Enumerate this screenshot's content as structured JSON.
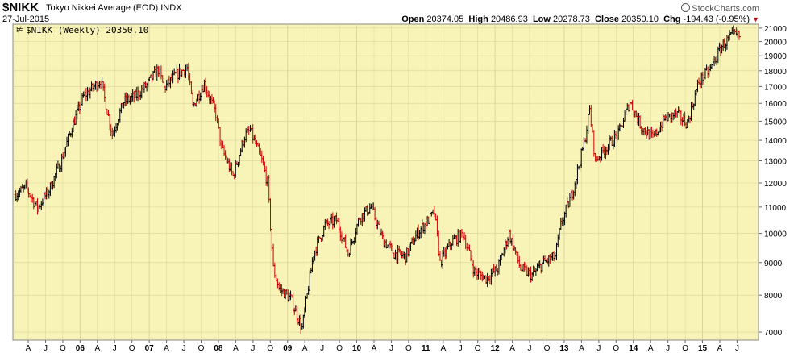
{
  "header": {
    "symbol": "$NIKK",
    "name": "Tokyo Nikkei Average (EOD)",
    "exchange": "INDX",
    "date": "27-Jul-2015",
    "watermark": "StockCharts.com",
    "open_label": "Open",
    "open": "20374.05",
    "high_label": "High",
    "high": "20486.93",
    "low_label": "Low",
    "low": "20278.73",
    "close_label": "Close",
    "close": "20350.10",
    "chg_label": "Chg",
    "chg": "-194.43 (-0.95%)"
  },
  "legend": {
    "label": "$NIKK (Weekly) 20350.10"
  },
  "colors": {
    "plot_bg": "#f8f4b8",
    "up": "#000000",
    "down": "#cc0000",
    "grid": "#d8d29a",
    "legend_icon": "#000000"
  },
  "chart_data": {
    "type": "ohlc",
    "title": "$NIKK (Weekly) 20350.10",
    "scale": "log",
    "ylim": [
      6800,
      21300
    ],
    "y_ticks": [
      7000,
      8000,
      9000,
      10000,
      11000,
      12000,
      13000,
      14000,
      15000,
      16000,
      17000,
      18000,
      19000,
      20000,
      21000
    ],
    "x_ticks": [
      "A",
      "J",
      "O",
      "06",
      "A",
      "J",
      "O",
      "07",
      "A",
      "J",
      "O",
      "08",
      "A",
      "J",
      "O",
      "09",
      "A",
      "J",
      "O",
      "10",
      "A",
      "J",
      "O",
      "11",
      "A",
      "J",
      "O",
      "12",
      "A",
      "J",
      "O",
      "13",
      "A",
      "J",
      "O",
      "14",
      "A",
      "J",
      "O",
      "15",
      "A",
      "J"
    ],
    "year_ticks": [
      "06",
      "07",
      "08",
      "09",
      "10",
      "11",
      "12",
      "13",
      "14",
      "15"
    ],
    "x_start": "2005-01",
    "x_end": "2015-07",
    "anchors": [
      [
        "2005-01",
        11500
      ],
      [
        "2005-03",
        11800
      ],
      [
        "2005-05",
        10950
      ],
      [
        "2005-07",
        11700
      ],
      [
        "2005-09",
        12900
      ],
      [
        "2005-11",
        14700
      ],
      [
        "2006-01",
        16400
      ],
      [
        "2006-04",
        17400
      ],
      [
        "2006-06",
        14300
      ],
      [
        "2006-08",
        16100
      ],
      [
        "2006-10",
        16400
      ],
      [
        "2006-12",
        17100
      ],
      [
        "2007-02",
        18100
      ],
      [
        "2007-03",
        16900
      ],
      [
        "2007-05",
        17700
      ],
      [
        "2007-07",
        18200
      ],
      [
        "2007-08",
        15800
      ],
      [
        "2007-10",
        17200
      ],
      [
        "2007-12",
        15400
      ],
      [
        "2008-01",
        13600
      ],
      [
        "2008-03",
        12300
      ],
      [
        "2008-05",
        14200
      ],
      [
        "2008-06",
        14500
      ],
      [
        "2008-08",
        13000
      ],
      [
        "2008-09",
        12000
      ],
      [
        "2008-10",
        8800
      ],
      [
        "2008-11",
        8200
      ],
      [
        "2009-01",
        7900
      ],
      [
        "2009-03",
        7100
      ],
      [
        "2009-05",
        9300
      ],
      [
        "2009-07",
        10300
      ],
      [
        "2009-09",
        10500
      ],
      [
        "2009-11",
        9300
      ],
      [
        "2010-01",
        10600
      ],
      [
        "2010-03",
        11000
      ],
      [
        "2010-05",
        9800
      ],
      [
        "2010-07",
        9300
      ],
      [
        "2010-09",
        9200
      ],
      [
        "2010-11",
        10000
      ],
      [
        "2011-01",
        10500
      ],
      [
        "2011-02",
        10800
      ],
      [
        "2011-03",
        9000
      ],
      [
        "2011-05",
        9700
      ],
      [
        "2011-07",
        10000
      ],
      [
        "2011-09",
        8700
      ],
      [
        "2011-11",
        8500
      ],
      [
        "2012-01",
        8800
      ],
      [
        "2012-03",
        10000
      ],
      [
        "2012-05",
        8800
      ],
      [
        "2012-07",
        8600
      ],
      [
        "2012-09",
        9000
      ],
      [
        "2012-11",
        9200
      ],
      [
        "2012-12",
        10300
      ],
      [
        "2013-02",
        11600
      ],
      [
        "2013-04",
        13800
      ],
      [
        "2013-05",
        15600
      ],
      [
        "2013-06",
        13000
      ],
      [
        "2013-08",
        13700
      ],
      [
        "2013-10",
        14300
      ],
      [
        "2013-12",
        16100
      ],
      [
        "2014-02",
        14700
      ],
      [
        "2014-04",
        14100
      ],
      [
        "2014-06",
        15100
      ],
      [
        "2014-08",
        15400
      ],
      [
        "2014-10",
        14900
      ],
      [
        "2014-12",
        17300
      ],
      [
        "2015-02",
        18100
      ],
      [
        "2015-04",
        19700
      ],
      [
        "2015-06",
        20500
      ],
      [
        "2015-07",
        20350
      ]
    ]
  }
}
